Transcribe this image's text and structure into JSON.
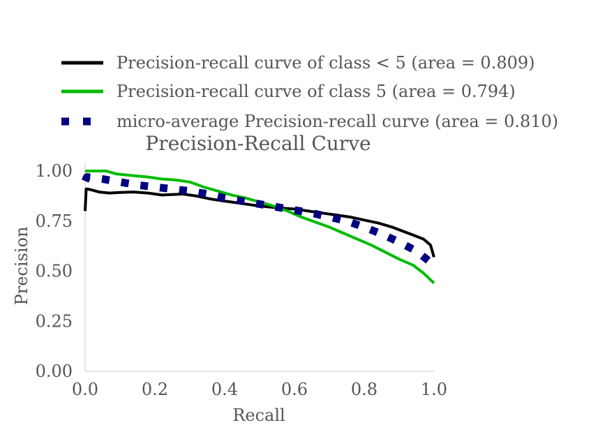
{
  "chart_data": {
    "type": "line",
    "title": "Precision-Recall Curve",
    "xlabel": "Recall",
    "ylabel": "Precision",
    "xlim": [
      0.0,
      1.0
    ],
    "ylim": [
      0.0,
      1.0
    ],
    "xticks": [
      0.0,
      0.2,
      0.4,
      0.6,
      0.8,
      1.0
    ],
    "xtick_labels": [
      "0.0",
      "0.2",
      "0.4",
      "0.6",
      "0.8",
      "1.0"
    ],
    "yticks": [
      0.0,
      0.25,
      0.5,
      0.75,
      1.0
    ],
    "ytick_labels": [
      "0.00",
      "0.25",
      "0.50",
      "0.75",
      "1.00"
    ],
    "grid": false,
    "legend_position": "top",
    "series": [
      {
        "name": "Precision-recall curve of class < 5 (area = 0.809)",
        "color": "#000000",
        "style": "solid",
        "x": [
          0.0,
          0.003,
          0.006,
          0.02,
          0.04,
          0.07,
          0.1,
          0.14,
          0.18,
          0.22,
          0.28,
          0.32,
          0.36,
          0.4,
          0.44,
          0.48,
          0.52,
          0.56,
          0.6,
          0.64,
          0.68,
          0.72,
          0.76,
          0.8,
          0.84,
          0.88,
          0.91,
          0.94,
          0.97,
          0.99,
          1.0
        ],
        "y": [
          0.8,
          0.91,
          0.91,
          0.905,
          0.895,
          0.89,
          0.893,
          0.895,
          0.89,
          0.88,
          0.885,
          0.875,
          0.86,
          0.85,
          0.84,
          0.83,
          0.822,
          0.815,
          0.81,
          0.8,
          0.79,
          0.78,
          0.77,
          0.755,
          0.74,
          0.72,
          0.7,
          0.68,
          0.66,
          0.63,
          0.57
        ]
      },
      {
        "name": "Precision-recall curve of class 5 (area = 0.794)",
        "color": "#00bb00",
        "style": "solid",
        "x": [
          0.0,
          0.03,
          0.06,
          0.09,
          0.12,
          0.15,
          0.18,
          0.22,
          0.26,
          0.3,
          0.34,
          0.38,
          0.42,
          0.46,
          0.5,
          0.54,
          0.58,
          0.62,
          0.66,
          0.7,
          0.74,
          0.78,
          0.82,
          0.86,
          0.9,
          0.94,
          0.97,
          1.0
        ],
        "y": [
          1.0,
          1.0,
          1.0,
          0.985,
          0.98,
          0.975,
          0.97,
          0.96,
          0.955,
          0.945,
          0.92,
          0.9,
          0.88,
          0.865,
          0.845,
          0.825,
          0.8,
          0.77,
          0.745,
          0.72,
          0.69,
          0.66,
          0.63,
          0.595,
          0.56,
          0.53,
          0.49,
          0.44
        ]
      },
      {
        "name": "micro-average Precision-recall curve (area = 0.810)",
        "color": "#000080",
        "style": "dotted",
        "x": [
          0.0,
          0.005,
          0.05,
          0.1,
          0.15,
          0.2,
          0.25,
          0.3,
          0.35,
          0.4,
          0.45,
          0.5,
          0.55,
          0.6,
          0.65,
          0.7,
          0.75,
          0.8,
          0.85,
          0.9,
          0.95,
          1.0
        ],
        "y": [
          0.95,
          0.97,
          0.96,
          0.945,
          0.93,
          0.92,
          0.91,
          0.9,
          0.885,
          0.865,
          0.85,
          0.835,
          0.82,
          0.805,
          0.79,
          0.77,
          0.75,
          0.72,
          0.685,
          0.645,
          0.6,
          0.53
        ]
      }
    ]
  }
}
